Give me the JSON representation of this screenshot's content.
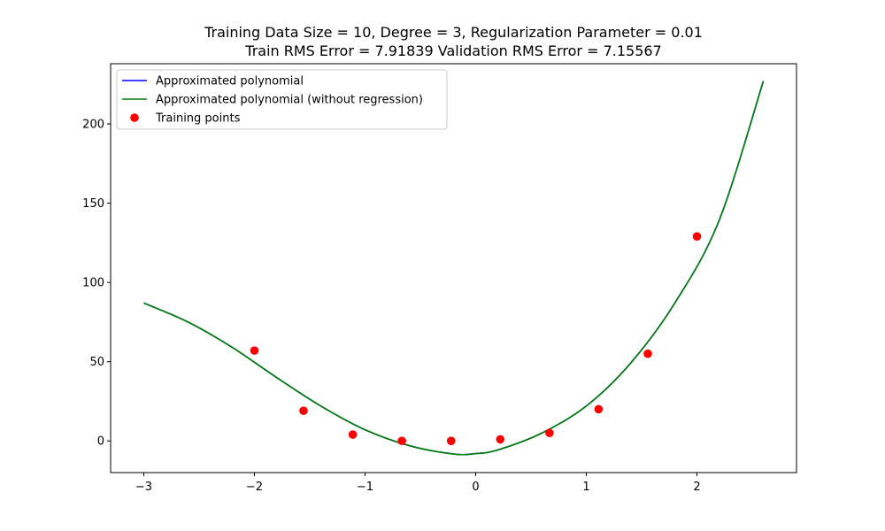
{
  "chart_data": {
    "type": "line",
    "title_line1": "Training Data Size = 10, Degree = 3, Regularization Parameter = 0.01",
    "title_line2": "Train RMS Error = 7.91839 Validation RMS Error = 7.15567",
    "xlabel": "",
    "ylabel": "",
    "xlim": [
      -3.3,
      2.9
    ],
    "ylim": [
      -20,
      238
    ],
    "x_ticks": [
      {
        "value": -3,
        "label": "−3"
      },
      {
        "value": -2,
        "label": "−2"
      },
      {
        "value": -1,
        "label": "−1"
      },
      {
        "value": 0,
        "label": "0"
      },
      {
        "value": 1,
        "label": "1"
      },
      {
        "value": 2,
        "label": "2"
      }
    ],
    "y_ticks": [
      {
        "value": 0,
        "label": "0"
      },
      {
        "value": 50,
        "label": "50"
      },
      {
        "value": 100,
        "label": "100"
      },
      {
        "value": 150,
        "label": "150"
      },
      {
        "value": 200,
        "label": "200"
      }
    ],
    "grid": false,
    "legend_position": "upper-left",
    "series": [
      {
        "name": "Approximated polynomial",
        "kind": "line",
        "color": "#0000ff",
        "x": [
          -3.0,
          -2.6,
          -2.2,
          -1.8,
          -1.4,
          -1.0,
          -0.6,
          -0.2,
          0.0,
          0.2,
          0.6,
          1.0,
          1.4,
          1.8,
          2.2,
          2.6
        ],
        "y": [
          87,
          75,
          59,
          40,
          22,
          7,
          -3,
          -8.3,
          -8,
          -5.7,
          5,
          22,
          49,
          87,
          139,
          227
        ]
      },
      {
        "name": "Approximated polynomial (without regression)",
        "kind": "line",
        "color": "#008000",
        "x": [
          -3.0,
          -2.6,
          -2.2,
          -1.8,
          -1.4,
          -1.0,
          -0.6,
          -0.2,
          0.0,
          0.2,
          0.6,
          1.0,
          1.4,
          1.8,
          2.2,
          2.6
        ],
        "y": [
          87,
          75,
          59,
          40,
          22,
          7,
          -3,
          -8.3,
          -8,
          -5.7,
          5,
          22,
          49,
          87,
          139,
          227
        ]
      },
      {
        "name": "Training points",
        "kind": "scatter",
        "color": "#ff0000",
        "x": [
          -2.0,
          -1.556,
          -1.111,
          -0.667,
          -0.222,
          0.222,
          0.667,
          1.111,
          1.556,
          2.0
        ],
        "y": [
          57,
          19,
          4,
          0,
          0,
          1,
          5,
          20,
          55,
          129
        ]
      }
    ]
  }
}
